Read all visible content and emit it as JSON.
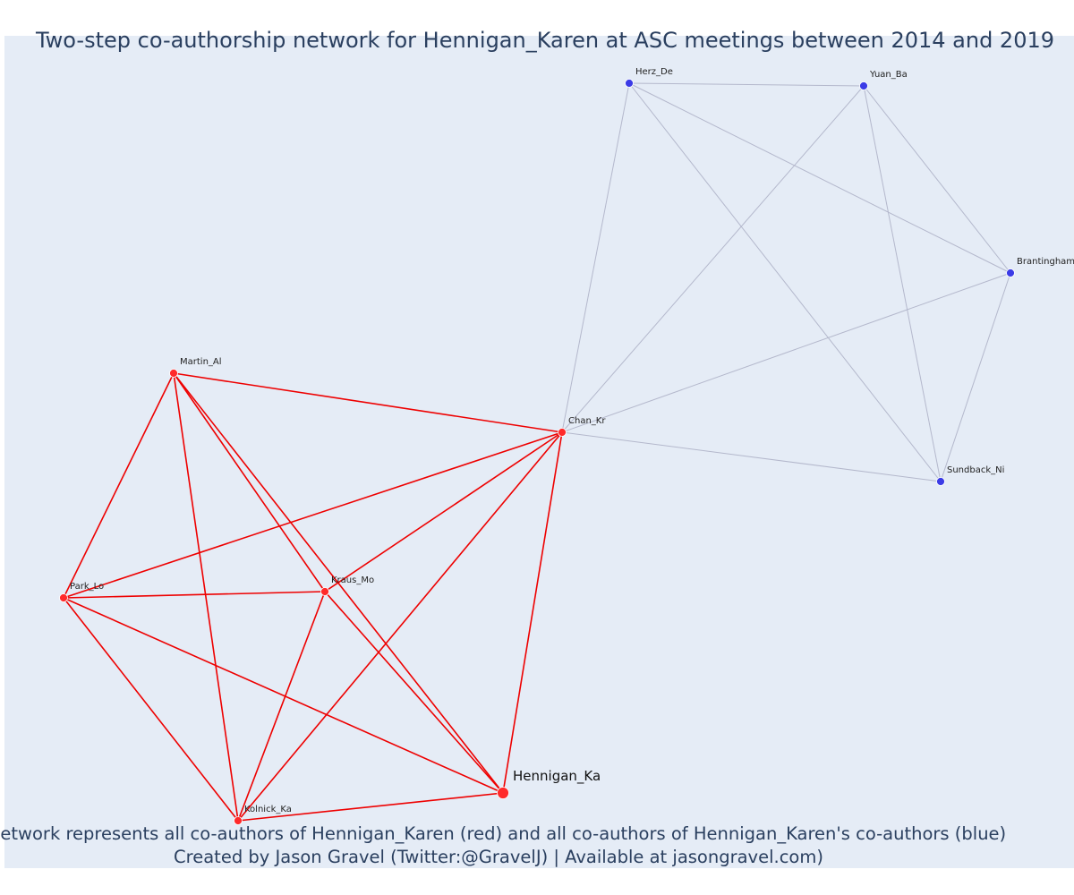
{
  "title": "Two-step co-authorship network for Hennigan_Karen at ASC meetings between 2014 and 2019",
  "caption": {
    "line1": "Network represents all co-authors of Hennigan_Karen (red) and all co-authors of Hennigan_Karen's co-authors (blue)",
    "line2": "Created by Jason Gravel (Twitter:@GravelJ) | Available at jasongravel.com)"
  },
  "colors": {
    "plot_bg": "#e5ecf6",
    "red_node": "#ff2a2a",
    "red_edge": "#ee0000",
    "blue_node": "#3b3be6",
    "blue_edge": "#b4b8cc",
    "text": "#2a3f5f"
  },
  "nodes": [
    {
      "id": "Herz_De",
      "label": "Herz_De",
      "group": "blue"
    },
    {
      "id": "Yuan_Ba",
      "label": "Yuan_Ba",
      "group": "blue"
    },
    {
      "id": "Brantingham",
      "label": "Brantingham",
      "group": "blue"
    },
    {
      "id": "Sundback_Ni",
      "label": "Sundback_Ni",
      "group": "blue"
    },
    {
      "id": "Chan_Kr",
      "label": "Chan_Kr",
      "group": "red"
    },
    {
      "id": "Martin_Al",
      "label": "Martin_Al",
      "group": "red"
    },
    {
      "id": "Park_Lo",
      "label": "Park_Lo",
      "group": "red"
    },
    {
      "id": "Kraus_Mo",
      "label": "Kraus_Mo",
      "group": "red"
    },
    {
      "id": "Kolnick_Ka",
      "label": "Kolnick_Ka",
      "group": "red"
    },
    {
      "id": "Hennigan_Ka",
      "label": "Hennigan_Ka",
      "group": "focal"
    }
  ],
  "edges": [
    {
      "source": "Herz_De",
      "target": "Yuan_Ba",
      "group": "blue"
    },
    {
      "source": "Herz_De",
      "target": "Brantingham",
      "group": "blue"
    },
    {
      "source": "Herz_De",
      "target": "Sundback_Ni",
      "group": "blue"
    },
    {
      "source": "Herz_De",
      "target": "Chan_Kr",
      "group": "blue"
    },
    {
      "source": "Yuan_Ba",
      "target": "Brantingham",
      "group": "blue"
    },
    {
      "source": "Yuan_Ba",
      "target": "Sundback_Ni",
      "group": "blue"
    },
    {
      "source": "Yuan_Ba",
      "target": "Chan_Kr",
      "group": "blue"
    },
    {
      "source": "Brantingham",
      "target": "Sundback_Ni",
      "group": "blue"
    },
    {
      "source": "Brantingham",
      "target": "Chan_Kr",
      "group": "blue"
    },
    {
      "source": "Sundback_Ni",
      "target": "Chan_Kr",
      "group": "blue"
    },
    {
      "source": "Chan_Kr",
      "target": "Martin_Al",
      "group": "red"
    },
    {
      "source": "Chan_Kr",
      "target": "Park_Lo",
      "group": "red"
    },
    {
      "source": "Chan_Kr",
      "target": "Kraus_Mo",
      "group": "red"
    },
    {
      "source": "Chan_Kr",
      "target": "Kolnick_Ka",
      "group": "red"
    },
    {
      "source": "Chan_Kr",
      "target": "Hennigan_Ka",
      "group": "red"
    },
    {
      "source": "Martin_Al",
      "target": "Park_Lo",
      "group": "red"
    },
    {
      "source": "Martin_Al",
      "target": "Kraus_Mo",
      "group": "red"
    },
    {
      "source": "Martin_Al",
      "target": "Kolnick_Ka",
      "group": "red"
    },
    {
      "source": "Martin_Al",
      "target": "Hennigan_Ka",
      "group": "red"
    },
    {
      "source": "Park_Lo",
      "target": "Kraus_Mo",
      "group": "red"
    },
    {
      "source": "Park_Lo",
      "target": "Kolnick_Ka",
      "group": "red"
    },
    {
      "source": "Park_Lo",
      "target": "Hennigan_Ka",
      "group": "red"
    },
    {
      "source": "Kraus_Mo",
      "target": "Kolnick_Ka",
      "group": "red"
    },
    {
      "source": "Kraus_Mo",
      "target": "Hennigan_Ka",
      "group": "red"
    },
    {
      "source": "Kolnick_Ka",
      "target": "Hennigan_Ka",
      "group": "red"
    }
  ]
}
